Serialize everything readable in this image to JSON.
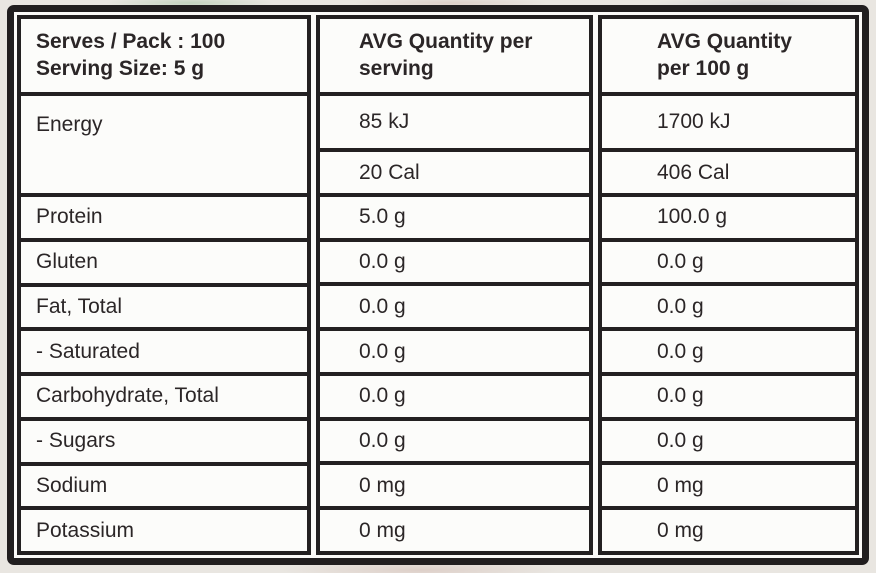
{
  "table": {
    "colors": {
      "border": "#232021",
      "frame_border": "#211e1f",
      "text": "#2b2627",
      "cell_bg": "#fcfcfa",
      "page_bg": "#e9e6e1"
    },
    "header": {
      "serving_info_line1": "Serves / Pack : 100",
      "serving_info_line2": "Serving Size: 5 g",
      "per_serving_line1": "AVG Quantity per",
      "per_serving_line2": "serving",
      "per_100g_line1": "AVG Quantity",
      "per_100g_line2": "per 100 g"
    },
    "energy": {
      "label": "Energy",
      "per_serving_kj": "85 kJ",
      "per_serving_cal": "20 Cal",
      "per_100g_kj": "1700 kJ",
      "per_100g_cal": "406 Cal"
    },
    "rows": [
      {
        "label": "Protein",
        "per_serving": "5.0 g",
        "per_100g": "100.0 g"
      },
      {
        "label": "Gluten",
        "per_serving": "0.0 g",
        "per_100g": "0.0 g"
      },
      {
        "label": "Fat, Total",
        "per_serving": "0.0 g",
        "per_100g": "0.0 g"
      },
      {
        "label": "- Saturated",
        "per_serving": "0.0 g",
        "per_100g": "0.0 g"
      },
      {
        "label": "Carbohydrate, Total",
        "per_serving": "0.0 g",
        "per_100g": "0.0 g"
      },
      {
        "label": "- Sugars",
        "per_serving": "0.0 g",
        "per_100g": "0.0 g"
      },
      {
        "label": "Sodium",
        "per_serving": "0 mg",
        "per_100g": "0 mg"
      },
      {
        "label": "Potassium",
        "per_serving": "0 mg",
        "per_100g": "0 mg"
      }
    ]
  }
}
